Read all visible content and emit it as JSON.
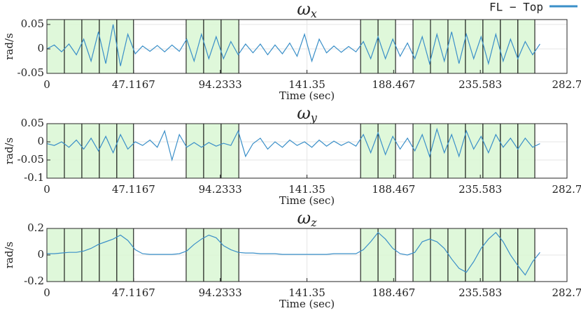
{
  "chart_data": [
    {
      "type": "line",
      "title": {
        "symbol": "ω",
        "subscript": "x"
      },
      "xlabel": "Time (sec)",
      "ylabel": "rad/s",
      "xlim": [
        0,
        282.7
      ],
      "xticks": [
        0,
        47.1167,
        94.2333,
        141.35,
        188.467,
        235.583,
        282.7
      ],
      "ylim": [
        -0.05,
        0.06
      ],
      "yticks": [
        -0.05,
        0,
        0.05
      ],
      "grid": true,
      "legend": "upper right",
      "regions": [
        [
          0,
          9.5
        ],
        [
          9.5,
          19
        ],
        [
          19,
          28.5
        ],
        [
          28.5,
          38
        ],
        [
          38,
          47.1
        ],
        [
          75.7,
          85.2
        ],
        [
          85.2,
          94.7
        ],
        [
          94.7,
          104.3
        ],
        [
          170.5,
          180
        ],
        [
          180,
          189.5
        ],
        [
          199,
          208.5
        ],
        [
          208.5,
          218
        ],
        [
          218,
          227.5
        ],
        [
          227.5,
          237
        ],
        [
          237,
          246.5
        ],
        [
          246.5,
          256
        ],
        [
          256,
          265.2
        ]
      ],
      "x": [
        0,
        4,
        8,
        12,
        16,
        20,
        24,
        28,
        32,
        36,
        40,
        44,
        48,
        52,
        56,
        60,
        64,
        68,
        72,
        76,
        80,
        84,
        88,
        92,
        96,
        100,
        104,
        108,
        112,
        116,
        120,
        124,
        128,
        132,
        136,
        140,
        144,
        148,
        152,
        156,
        160,
        164,
        168,
        172,
        176,
        180,
        184,
        188,
        192,
        196,
        200,
        204,
        208,
        212,
        216,
        220,
        224,
        228,
        232,
        236,
        240,
        244,
        248,
        252,
        256,
        260,
        264,
        268
      ],
      "series": [
        {
          "name": "FL − Top",
          "color": "#3a8fc8",
          "values": [
            0,
            0.008,
            -0.006,
            0.01,
            -0.012,
            0.02,
            -0.025,
            0.035,
            -0.03,
            0.05,
            -0.035,
            0.03,
            -0.01,
            0.006,
            -0.005,
            0.007,
            -0.006,
            0.008,
            -0.005,
            0.02,
            -0.025,
            0.03,
            -0.02,
            0.025,
            -0.02,
            0.015,
            -0.012,
            0.01,
            -0.008,
            0.01,
            -0.012,
            0.008,
            -0.01,
            0.012,
            -0.015,
            0.03,
            -0.025,
            0.02,
            -0.008,
            0.006,
            -0.007,
            0.005,
            -0.006,
            0.015,
            -0.02,
            0.025,
            -0.02,
            0.02,
            -0.015,
            0.012,
            -0.02,
            0.025,
            -0.03,
            0.03,
            -0.025,
            0.035,
            -0.03,
            0.03,
            -0.02,
            0.025,
            -0.03,
            0.03,
            -0.025,
            0.02,
            -0.02,
            0.015,
            -0.012,
            0.01
          ]
        }
      ]
    },
    {
      "type": "line",
      "title": {
        "symbol": "ω",
        "subscript": "y"
      },
      "xlabel": "Time (sec)",
      "ylabel": "rad/s",
      "xlim": [
        0,
        282.7
      ],
      "xticks": [
        0,
        47.1167,
        94.2333,
        141.35,
        188.467,
        235.583,
        282.7
      ],
      "ylim": [
        -0.1,
        0.05
      ],
      "yticks": [
        -0.1,
        -0.05,
        0,
        0.05
      ],
      "grid": true,
      "regions": [
        [
          0,
          9.5
        ],
        [
          9.5,
          19
        ],
        [
          19,
          28.5
        ],
        [
          28.5,
          38
        ],
        [
          38,
          47.1
        ],
        [
          75.7,
          85.2
        ],
        [
          85.2,
          94.7
        ],
        [
          94.7,
          104.3
        ],
        [
          170.5,
          180
        ],
        [
          180,
          189.5
        ],
        [
          199,
          208.5
        ],
        [
          208.5,
          218
        ],
        [
          218,
          227.5
        ],
        [
          227.5,
          237
        ],
        [
          237,
          246.5
        ],
        [
          246.5,
          256
        ],
        [
          256,
          265.2
        ]
      ],
      "x": [
        0,
        4,
        8,
        12,
        16,
        20,
        24,
        28,
        32,
        36,
        40,
        44,
        48,
        52,
        56,
        60,
        64,
        68,
        72,
        76,
        80,
        84,
        88,
        92,
        96,
        100,
        104,
        108,
        112,
        116,
        120,
        124,
        128,
        132,
        136,
        140,
        144,
        148,
        152,
        156,
        160,
        164,
        168,
        172,
        176,
        180,
        184,
        188,
        192,
        196,
        200,
        204,
        208,
        212,
        216,
        220,
        224,
        228,
        232,
        236,
        240,
        244,
        248,
        252,
        256,
        260,
        264,
        268
      ],
      "series": [
        {
          "color": "#3a8fc8",
          "values": [
            -0.005,
            -0.01,
            0,
            -0.015,
            0.005,
            -0.02,
            0.01,
            -0.025,
            0.015,
            -0.03,
            0.02,
            -0.02,
            0,
            -0.01,
            0.005,
            -0.015,
            0.03,
            -0.05,
            0.02,
            -0.015,
            -0.002,
            -0.015,
            -0.002,
            -0.012,
            -0.004,
            -0.01,
            0.03,
            -0.04,
            -0.005,
            0.01,
            -0.02,
            0,
            -0.015,
            0.005,
            -0.01,
            0,
            -0.015,
            0.005,
            -0.012,
            0.002,
            -0.01,
            0,
            -0.012,
            0.02,
            -0.03,
            0.025,
            -0.035,
            0.015,
            -0.02,
            0.01,
            -0.025,
            0.02,
            -0.04,
            0.035,
            -0.03,
            0.02,
            -0.04,
            0.03,
            -0.02,
            0.015,
            -0.03,
            0.02,
            -0.015,
            0.01,
            -0.02,
            0.01,
            -0.015,
            -0.005
          ]
        }
      ]
    },
    {
      "type": "line",
      "title": {
        "symbol": "ω",
        "subscript": "z"
      },
      "xlabel": "Time (sec)",
      "ylabel": "rad/s",
      "xlim": [
        0,
        282.7
      ],
      "xticks": [
        0,
        47.1167,
        94.2333,
        141.35,
        188.467,
        235.583,
        282.7
      ],
      "ylim": [
        -0.2,
        0.2
      ],
      "yticks": [
        -0.2,
        0,
        0.2
      ],
      "grid": true,
      "regions": [
        [
          0,
          9.5
        ],
        [
          9.5,
          19
        ],
        [
          19,
          28.5
        ],
        [
          28.5,
          38
        ],
        [
          38,
          47.1
        ],
        [
          75.7,
          85.2
        ],
        [
          85.2,
          94.7
        ],
        [
          94.7,
          104.3
        ],
        [
          170.5,
          180
        ],
        [
          180,
          189.5
        ],
        [
          199,
          208.5
        ],
        [
          208.5,
          218
        ],
        [
          218,
          227.5
        ],
        [
          227.5,
          237
        ],
        [
          237,
          246.5
        ],
        [
          246.5,
          256
        ],
        [
          256,
          265.2
        ]
      ],
      "x": [
        0,
        4,
        8,
        12,
        16,
        20,
        24,
        28,
        32,
        36,
        40,
        44,
        48,
        52,
        56,
        60,
        64,
        68,
        72,
        76,
        80,
        84,
        88,
        92,
        96,
        100,
        104,
        108,
        112,
        116,
        120,
        124,
        128,
        132,
        136,
        140,
        144,
        148,
        152,
        156,
        160,
        164,
        168,
        172,
        176,
        180,
        184,
        188,
        192,
        196,
        200,
        204,
        208,
        212,
        216,
        220,
        224,
        228,
        232,
        236,
        240,
        244,
        248,
        252,
        256,
        260,
        264,
        268
      ],
      "series": [
        {
          "color": "#3a8fc8",
          "values": [
            0.01,
            0.01,
            0.015,
            0.02,
            0.02,
            0.03,
            0.05,
            0.08,
            0.1,
            0.12,
            0.15,
            0.11,
            0.04,
            0.01,
            0.005,
            0.005,
            0.005,
            0.005,
            0.01,
            0.03,
            0.08,
            0.12,
            0.15,
            0.13,
            0.07,
            0.04,
            0.02,
            0.015,
            0.015,
            0.01,
            0.01,
            0.01,
            0.005,
            0.005,
            0.005,
            0.005,
            0.005,
            0.005,
            0.005,
            0.01,
            0.01,
            0.01,
            0.01,
            0.04,
            0.1,
            0.17,
            0.12,
            0.05,
            0.01,
            0,
            0.02,
            0.1,
            0.12,
            0.1,
            0.05,
            -0.03,
            -0.1,
            -0.13,
            -0.05,
            0.05,
            0.12,
            0.17,
            0.1,
            0,
            -0.08,
            -0.15,
            -0.05,
            0.02
          ]
        }
      ]
    }
  ]
}
